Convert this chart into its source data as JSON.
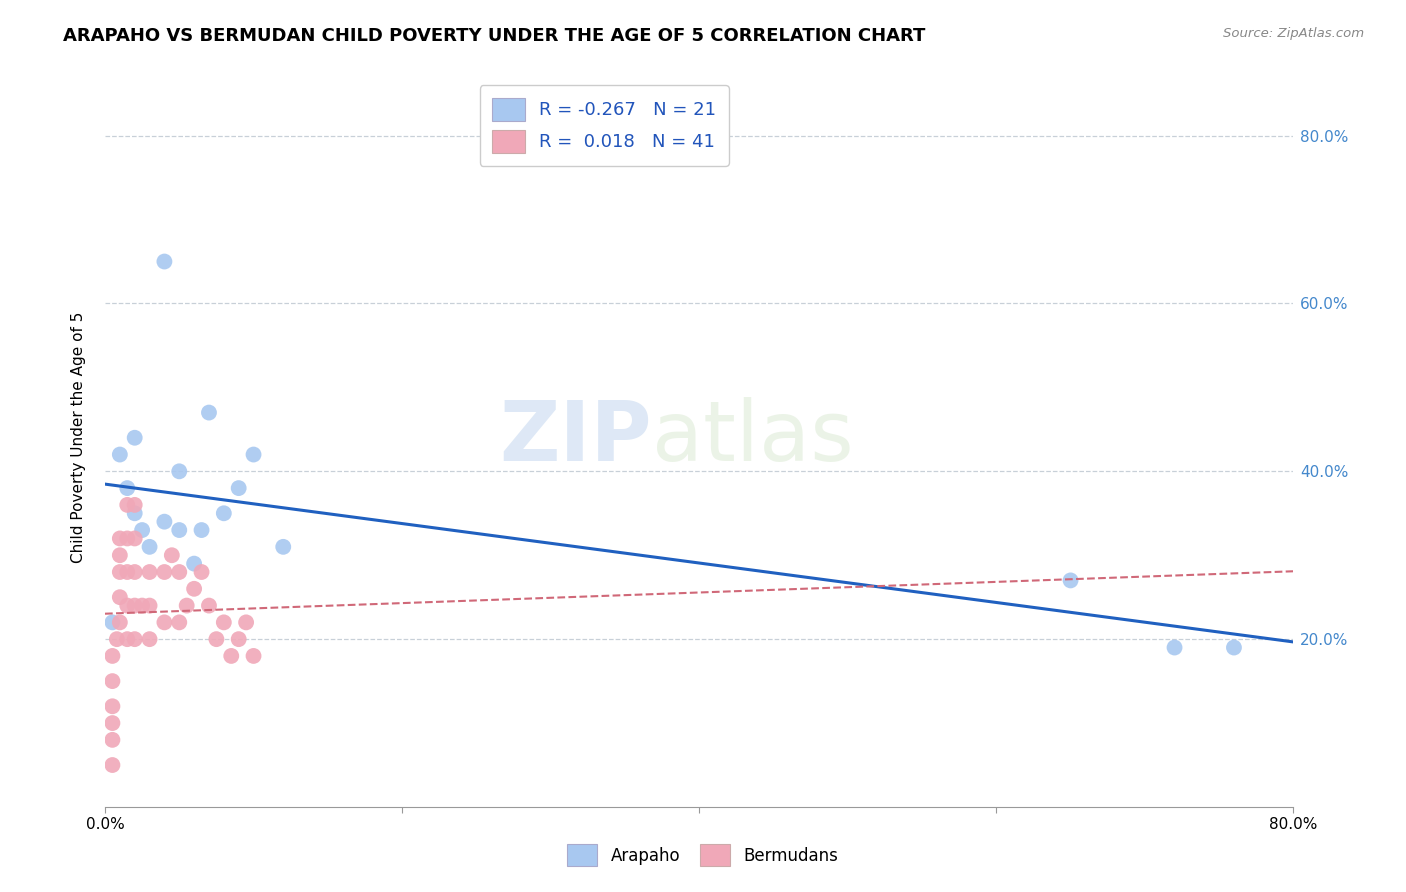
{
  "title": "ARAPAHO VS BERMUDAN CHILD POVERTY UNDER THE AGE OF 5 CORRELATION CHART",
  "source": "Source: ZipAtlas.com",
  "ylabel": "Child Poverty Under the Age of 5",
  "xlim": [
    0.0,
    0.8
  ],
  "ylim": [
    0.0,
    0.88
  ],
  "xticks": [
    0.0,
    0.2,
    0.4,
    0.6,
    0.8
  ],
  "yticks": [
    0.0,
    0.2,
    0.4,
    0.6,
    0.8
  ],
  "xtick_labels": [
    "0.0%",
    "",
    "",
    "",
    "80.0%"
  ],
  "ytick_right_labels": [
    "",
    "20.0%",
    "40.0%",
    "60.0%",
    "80.0%"
  ],
  "arapaho_color": "#a8c8f0",
  "bermudans_color": "#f0a8b8",
  "arapaho_line_color": "#2060c0",
  "bermudans_line_color": "#d06878",
  "grid_color": "#c8d0d8",
  "watermark_zip": "ZIP",
  "watermark_atlas": "atlas",
  "legend_R_arapaho": "-0.267",
  "legend_N_arapaho": "21",
  "legend_R_bermudans": "0.018",
  "legend_N_bermudans": "41",
  "arapaho_x": [
    0.005,
    0.01,
    0.015,
    0.02,
    0.02,
    0.025,
    0.03,
    0.04,
    0.05,
    0.05,
    0.06,
    0.065,
    0.07,
    0.08,
    0.09,
    0.1,
    0.12,
    0.65,
    0.72,
    0.76,
    0.04
  ],
  "arapaho_y": [
    0.22,
    0.42,
    0.38,
    0.35,
    0.44,
    0.33,
    0.31,
    0.34,
    0.4,
    0.33,
    0.29,
    0.33,
    0.47,
    0.35,
    0.38,
    0.42,
    0.31,
    0.27,
    0.19,
    0.19,
    0.65
  ],
  "bermudans_x": [
    0.005,
    0.005,
    0.005,
    0.005,
    0.005,
    0.005,
    0.008,
    0.01,
    0.01,
    0.01,
    0.01,
    0.01,
    0.015,
    0.015,
    0.015,
    0.015,
    0.015,
    0.02,
    0.02,
    0.02,
    0.02,
    0.02,
    0.025,
    0.03,
    0.03,
    0.03,
    0.04,
    0.04,
    0.045,
    0.05,
    0.05,
    0.055,
    0.06,
    0.065,
    0.07,
    0.075,
    0.08,
    0.085,
    0.09,
    0.095,
    0.1
  ],
  "bermudans_y": [
    0.05,
    0.08,
    0.1,
    0.12,
    0.15,
    0.18,
    0.2,
    0.22,
    0.25,
    0.28,
    0.3,
    0.32,
    0.2,
    0.24,
    0.28,
    0.32,
    0.36,
    0.2,
    0.24,
    0.28,
    0.32,
    0.36,
    0.24,
    0.2,
    0.24,
    0.28,
    0.22,
    0.28,
    0.3,
    0.22,
    0.28,
    0.24,
    0.26,
    0.28,
    0.24,
    0.2,
    0.22,
    0.18,
    0.2,
    0.22,
    0.18
  ]
}
